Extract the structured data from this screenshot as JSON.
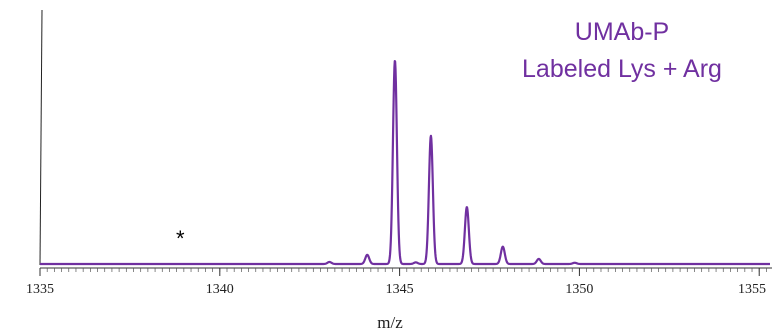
{
  "chart_data": {
    "type": "line",
    "title_lines": [
      "UMAb-P",
      "Labeled Lys + Arg"
    ],
    "xlabel": "m/z",
    "ylabel": "",
    "xlim": [
      1335,
      1355.3
    ],
    "ylim": [
      0,
      1.15
    ],
    "x_ticks": [
      "1335",
      "1340",
      "1345",
      "1350",
      "1355"
    ],
    "x_tick_values": [
      1335,
      1340,
      1345,
      1350,
      1355
    ],
    "grid": false,
    "color": "#7030a0",
    "series": [
      {
        "peaks": [
          {
            "x": 1343.05,
            "y": 0.01
          },
          {
            "x": 1344.1,
            "y": 0.045
          },
          {
            "x": 1344.87,
            "y": 1.0
          },
          {
            "x": 1345.45,
            "y": 0.008
          },
          {
            "x": 1345.87,
            "y": 0.63
          },
          {
            "x": 1346.87,
            "y": 0.28
          },
          {
            "x": 1347.87,
            "y": 0.085
          },
          {
            "x": 1348.87,
            "y": 0.025
          },
          {
            "x": 1349.87,
            "y": 0.006
          }
        ]
      }
    ],
    "annotations": [
      {
        "text": "*",
        "x": 1338.9
      }
    ]
  }
}
